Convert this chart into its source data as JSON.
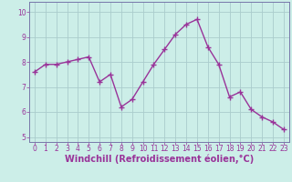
{
  "x": [
    0,
    1,
    2,
    3,
    4,
    5,
    6,
    7,
    8,
    9,
    10,
    11,
    12,
    13,
    14,
    15,
    16,
    17,
    18,
    19,
    20,
    21,
    22,
    23
  ],
  "y": [
    7.6,
    7.9,
    7.9,
    8.0,
    8.1,
    8.2,
    7.2,
    7.5,
    6.2,
    6.5,
    7.2,
    7.9,
    8.5,
    9.1,
    9.5,
    9.7,
    8.6,
    7.9,
    6.6,
    6.8,
    6.1,
    5.8,
    5.6,
    5.3
  ],
  "line_color": "#993399",
  "marker": "+",
  "marker_size": 4,
  "linewidth": 1.0,
  "xlabel": "Windchill (Refroidissement éolien,°C)",
  "xlabel_fontsize": 7,
  "bg_color": "#cceee8",
  "grid_color": "#aacccc",
  "axis_color": "#7777aa",
  "tick_color": "#993399",
  "ylim": [
    4.8,
    10.4
  ],
  "xlim": [
    -0.5,
    23.5
  ],
  "yticks": [
    5,
    6,
    7,
    8,
    9,
    10
  ],
  "xticks": [
    0,
    1,
    2,
    3,
    4,
    5,
    6,
    7,
    8,
    9,
    10,
    11,
    12,
    13,
    14,
    15,
    16,
    17,
    18,
    19,
    20,
    21,
    22,
    23
  ],
  "tick_fontsize": 5.5,
  "figsize": [
    3.2,
    2.0
  ],
  "dpi": 100
}
